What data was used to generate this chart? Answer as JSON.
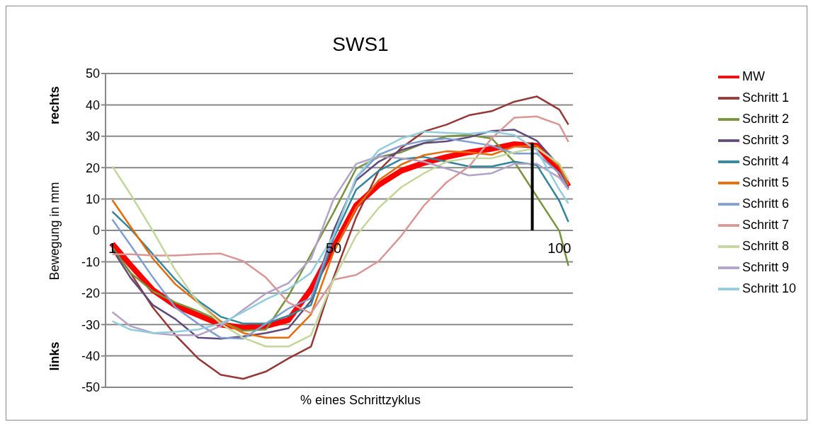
{
  "chart_data": {
    "type": "line",
    "title": "SWS1",
    "xlabel": "% eines Schrittzyklus",
    "ylabel": "Bewegung in mm",
    "annotations": [
      "rechts",
      "links"
    ],
    "x": [
      1,
      5,
      10,
      15,
      20,
      25,
      30,
      35,
      40,
      45,
      50,
      55,
      60,
      65,
      70,
      75,
      80,
      85,
      90,
      95,
      100,
      102
    ],
    "xlim": [
      -0.5,
      103
    ],
    "xticks": [
      1,
      50,
      100
    ],
    "ylim": [
      -50,
      50
    ],
    "yticks": [
      -50,
      -40,
      -30,
      -20,
      -10,
      0,
      10,
      20,
      30,
      40,
      50
    ],
    "grid": "y",
    "legend": "right",
    "marker": "none",
    "line_style": "solid",
    "series": [
      {
        "name": "MW",
        "color": "#ff0000",
        "values": [
          -4.3,
          -11,
          -19,
          -24,
          -27,
          -30,
          -31,
          -30.5,
          -28.6,
          -18.7,
          -5.4,
          8,
          14.5,
          19,
          21.5,
          23.4,
          24.9,
          26,
          27.5,
          27,
          19,
          14
        ]
      },
      {
        "name": "Schritt 1",
        "color": "#953735",
        "values": [
          -5.4,
          -13.5,
          -24.6,
          -33.4,
          -40.8,
          -46,
          -47.3,
          -45,
          -40.8,
          -37,
          -15,
          4.2,
          19,
          26.3,
          31.5,
          33.7,
          36.7,
          38,
          41,
          42.7,
          38.5,
          33.7
        ]
      },
      {
        "name": "Schritt 2",
        "color": "#77933c",
        "values": [
          -5.4,
          -13.5,
          -19.4,
          -23,
          -25.7,
          -29,
          -32,
          -31.6,
          -20.9,
          -7.6,
          5.7,
          19.7,
          23.4,
          24.9,
          27.8,
          30,
          30.4,
          29.3,
          21.9,
          10.8,
          -0.2,
          -11.3
        ]
      },
      {
        "name": "Schritt 3",
        "color": "#604a7b",
        "values": [
          -6,
          -15,
          -23.8,
          -28.3,
          -34.2,
          -34.5,
          -33.8,
          -32.7,
          -31.2,
          -22.4,
          0,
          16,
          21.9,
          25.6,
          27.8,
          28.4,
          29.7,
          31.7,
          32.1,
          28.6,
          20.4,
          13.4
        ]
      },
      {
        "name": "Schritt 4",
        "color": "#31859c",
        "values": [
          6,
          0.5,
          -7.6,
          -15.7,
          -22.4,
          -27.5,
          -29.7,
          -29.7,
          -27.2,
          -23.8,
          -2.4,
          13,
          19,
          22.7,
          23.4,
          21.9,
          20.4,
          20.4,
          21.9,
          20.8,
          9.4,
          2.7
        ]
      },
      {
        "name": "Schritt 5",
        "color": "#e46c0a",
        "values": [
          9.7,
          1.3,
          -9,
          -17.2,
          -23,
          -29,
          -32.7,
          -34.2,
          -34.2,
          -26.8,
          -6.9,
          7.2,
          16,
          21,
          24,
          25.2,
          24.9,
          24.1,
          26.7,
          27,
          20.4,
          14.5
        ]
      },
      {
        "name": "Schritt 6",
        "color": "#7f9fd0",
        "values": [
          3.5,
          -4.6,
          -15,
          -24.6,
          -29.7,
          -34.2,
          -34.5,
          -29.7,
          -24.9,
          -21.6,
          -1.7,
          16.8,
          24.1,
          27,
          28.6,
          29.3,
          28.2,
          27,
          24.5,
          24.5,
          18.2,
          13
        ]
      },
      {
        "name": "Schritt 7",
        "color": "#d99694",
        "values": [
          -7.6,
          -7.6,
          -8,
          -8,
          -7.6,
          -7.4,
          -9.8,
          -15,
          -23,
          -26.4,
          -15.7,
          -14.2,
          -9.8,
          -1.7,
          7.9,
          15.3,
          20.4,
          29.3,
          35.9,
          36.3,
          33.7,
          28.2
        ]
      },
      {
        "name": "Schritt 8",
        "color": "#c3d69b",
        "values": [
          20.4,
          11.6,
          -0.2,
          -12.8,
          -23,
          -29.7,
          -34.2,
          -37,
          -37,
          -33.4,
          -15.7,
          -1.7,
          7.2,
          13.8,
          18.2,
          21.9,
          23,
          23,
          24.9,
          26.3,
          21.2,
          16
        ]
      },
      {
        "name": "Schritt 9",
        "color": "#b3a2c7",
        "values": [
          -26,
          -30.5,
          -32.7,
          -33.4,
          -33.4,
          -30.5,
          -25.3,
          -20.1,
          -16.8,
          -9,
          10,
          21.2,
          23.6,
          23,
          21.9,
          19.7,
          17.5,
          18.2,
          21.2,
          21.2,
          16.8,
          13
        ]
      },
      {
        "name": "Schritt 10",
        "color": "#93cddd",
        "values": [
          -28.9,
          -31.6,
          -32.7,
          -32.3,
          -31.6,
          -29.7,
          -26,
          -22,
          -18.7,
          -13.5,
          -1.7,
          16.8,
          25.6,
          29.3,
          31.5,
          31.1,
          30.8,
          31.5,
          30.4,
          25.6,
          13,
          8.6
        ]
      },
      {
        "color": "#000000",
        "x": [
          94,
          94
        ],
        "values": [
          0,
          28
        ]
      }
    ]
  }
}
